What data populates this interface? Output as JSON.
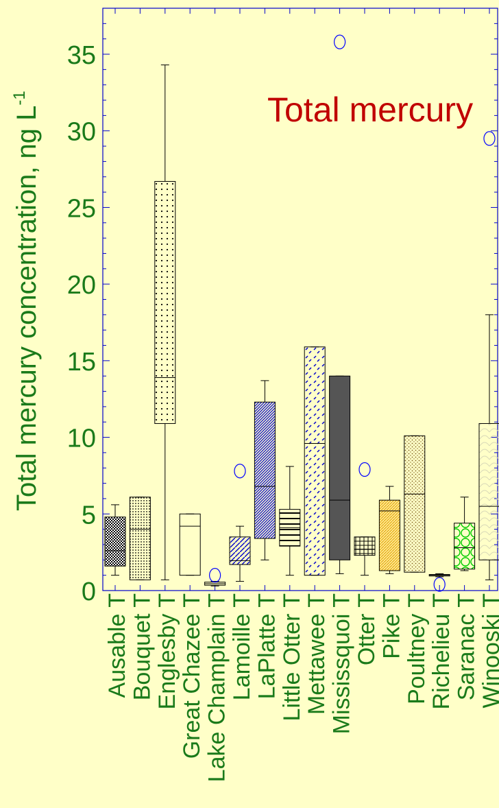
{
  "chart_data": {
    "type": "box",
    "title": "Total mercury",
    "ylabel": "Total mercury concentration, ng L",
    "ylabel_superscript": "-1",
    "xlabel": "",
    "ylim": [
      0,
      38
    ],
    "yticks": [
      0,
      5,
      10,
      15,
      20,
      25,
      30,
      35
    ],
    "ytick_labels": [
      "0",
      "5",
      "10",
      "15",
      "20",
      "25",
      "30",
      "35"
    ],
    "tick_suffix": "T",
    "colors": {
      "axis_text": "#1a7a1a",
      "title_text": "#c00000",
      "axis_frame": "#0000cc",
      "outlier": "#0000ff",
      "background": "#ffffc8"
    },
    "categories": [
      "Ausable",
      "Bouquet",
      "Englesby",
      "Great Chazee",
      "Lake Champlain",
      "Lamoille",
      "LaPlatte",
      "Little Otter",
      "Mettawee",
      "Mississquoi",
      "Otter",
      "Pike",
      "Poultney",
      "Richelieu",
      "Saranac",
      "Winooski"
    ],
    "boxes": [
      {
        "name": "Ausable",
        "whisker_low": 1.0,
        "q1": 1.6,
        "median": 2.6,
        "q3": 4.8,
        "whisker_high": 5.6,
        "fill": "checker",
        "color": "#000000",
        "outliers": []
      },
      {
        "name": "Bouquet",
        "whisker_low": 0.7,
        "q1": 0.7,
        "median": 4.0,
        "q3": 6.1,
        "whisker_high": 6.1,
        "fill": "dots-dense",
        "color": "#000000",
        "outliers": []
      },
      {
        "name": "Englesby",
        "whisker_low": 0.7,
        "q1": 10.9,
        "median": 13.9,
        "q3": 26.7,
        "whisker_high": 34.3,
        "fill": "dots-sparse",
        "color": "#000000",
        "outliers": []
      },
      {
        "name": "Great Chazee",
        "whisker_low": 1.0,
        "q1": 1.0,
        "median": 4.2,
        "q3": 5.0,
        "whisker_high": 5.0,
        "fill": "none",
        "color": "#000000",
        "outliers": []
      },
      {
        "name": "Lake Champlain",
        "whisker_low": 0.3,
        "q1": 0.35,
        "median": 0.45,
        "q3": 0.55,
        "whisker_high": 0.6,
        "fill": "none",
        "color": "#000000",
        "outliers": [
          1.0
        ]
      },
      {
        "name": "Lamoille",
        "whisker_low": 0.6,
        "q1": 1.7,
        "median": 1.95,
        "q3": 3.5,
        "whisker_high": 4.2,
        "fill": "diag-sparse",
        "color": "#0000cc",
        "outliers": [
          7.8
        ]
      },
      {
        "name": "LaPlatte",
        "whisker_low": 2.0,
        "q1": 3.4,
        "median": 6.8,
        "q3": 12.3,
        "whisker_high": 13.7,
        "fill": "diag-dense",
        "color": "#0000cc",
        "outliers": []
      },
      {
        "name": "Little Otter",
        "whisker_low": 1.0,
        "q1": 2.9,
        "median": 4.1,
        "q3": 5.3,
        "whisker_high": 8.1,
        "fill": "hlines",
        "color": "#000000",
        "outliers": []
      },
      {
        "name": "Mettawee",
        "whisker_low": 1.0,
        "q1": 1.0,
        "median": 9.6,
        "q3": 15.9,
        "whisker_high": 15.9,
        "fill": "dashes",
        "color": "#0000cc",
        "outliers": []
      },
      {
        "name": "Mississquoi",
        "whisker_low": 1.1,
        "q1": 2.0,
        "median": 5.9,
        "q3": 14.0,
        "whisker_high": 14.0,
        "fill": "solid",
        "color": "#555555",
        "outliers": [
          35.8
        ]
      },
      {
        "name": "Otter",
        "whisker_low": 1.0,
        "q1": 2.3,
        "median": 2.7,
        "q3": 3.5,
        "whisker_high": 3.5,
        "fill": "grid",
        "color": "#000000",
        "outliers": [
          7.9
        ]
      },
      {
        "name": "Pike",
        "whisker_low": 1.1,
        "q1": 1.3,
        "median": 5.2,
        "q3": 5.9,
        "whisker_high": 6.8,
        "fill": "orange-diag",
        "color": "#e0a000",
        "outliers": []
      },
      {
        "name": "Poultney",
        "whisker_low": 1.2,
        "q1": 1.2,
        "median": 6.3,
        "q3": 10.1,
        "whisker_high": 10.1,
        "fill": "brown-dots",
        "color": "#806020",
        "outliers": []
      },
      {
        "name": "Richelieu",
        "whisker_low": 0.9,
        "q1": 0.95,
        "median": 1.0,
        "q3": 1.05,
        "whisker_high": 1.1,
        "fill": "none",
        "color": "#000000",
        "outliers": [
          0.4
        ]
      },
      {
        "name": "Saranac",
        "whisker_low": 1.3,
        "q1": 1.4,
        "median": 2.8,
        "q3": 4.4,
        "whisker_high": 6.1,
        "fill": "green-circles",
        "color": "#00cc00",
        "outliers": []
      },
      {
        "name": "Winooski",
        "whisker_low": 0.7,
        "q1": 2.0,
        "median": 5.5,
        "q3": 10.9,
        "whisker_high": 18.0,
        "fill": "scales",
        "color": "#ccccaa",
        "outliers": [
          29.5
        ]
      }
    ]
  }
}
